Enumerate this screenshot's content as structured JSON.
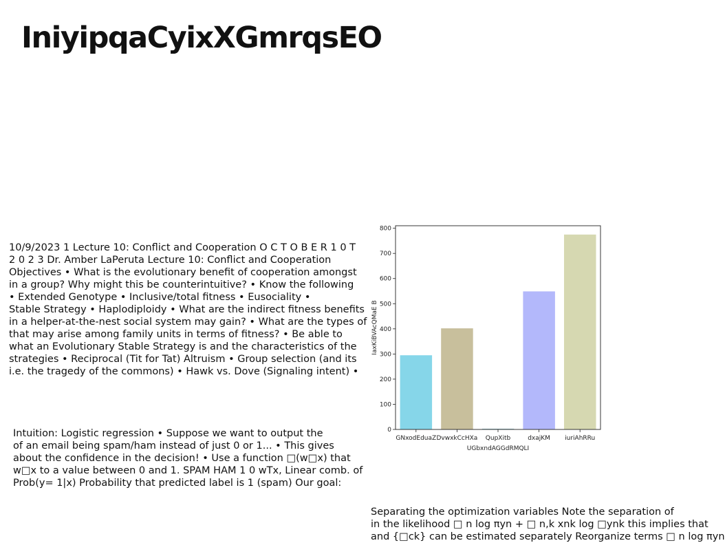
{
  "page": {
    "title": "IniyipqaCyixXGmrqsEO"
  },
  "blocks": {
    "a": "10/9/2023 1 Lecture 10: Conflict and Cooperation O C T O B E R 1 0 T\n2 0 2 3 Dr. Amber LaPeruta Lecture 10: Conflict and Cooperation\nObjectives • What is the evolutionary benefit of cooperation amongst\nin a group? Why might this be counterintuitive? • Know the following\n• Extended Genotype • Inclusive/total fitness • Eusociality •\nStable Strategy • Haplodiploidy • What are the indirect fitness benefits\nin a helper-at-the-nest social system may gain? • What are the types of\nthat may arise among family units in terms of fitness? • Be able to\nwhat an Evolutionary Stable Strategy is and the characteristics of the\nstrategies • Reciprocal (Tit for Tat) Altruism • Group selection (and its\ni.e. the tragedy of the commons) • Hawk vs. Dove (Signaling intent) •",
    "b": "Intuition: Logistic regression • Suppose we want to output the\nof an email being spam/ham instead of just 0 or 1... • This gives\nabout the confidence in the decision! • Use a function □(w□x) that\nw□x to a value between 0 and 1. SPAM HAM 1 0 wTx, Linear comb. of\nProb(y= 1|x) Probability that predicted label is 1 (spam) Our goal:",
    "c": "Separating the optimization variables Note the separation of\nin the likelihood □ n log πyn + □ n,k xnk log □ynk this implies that\nand {□ck} can be estimated separately Reorganize terms □ n log πyn"
  },
  "chart_data": {
    "type": "bar",
    "title": "",
    "xlabel": "UGbxndAGGdRMQLI",
    "ylabel": "IaxKiBVAcQMaE B",
    "categories": [
      "GNxodEduaZ",
      "DvwxkCcHXa",
      "QupXitb",
      "dxajKM",
      "iuriAhRRu"
    ],
    "values": [
      295,
      402,
      3,
      549,
      775
    ],
    "colors": [
      "#86d6e9",
      "#c8bf9c",
      "#9dc2c9",
      "#b3b8fb",
      "#d6d8b1"
    ],
    "ylim": [
      0,
      810
    ],
    "yticks": [
      0,
      100,
      200,
      300,
      400,
      500,
      600,
      700,
      800
    ],
    "grid": false,
    "legend": "none"
  }
}
